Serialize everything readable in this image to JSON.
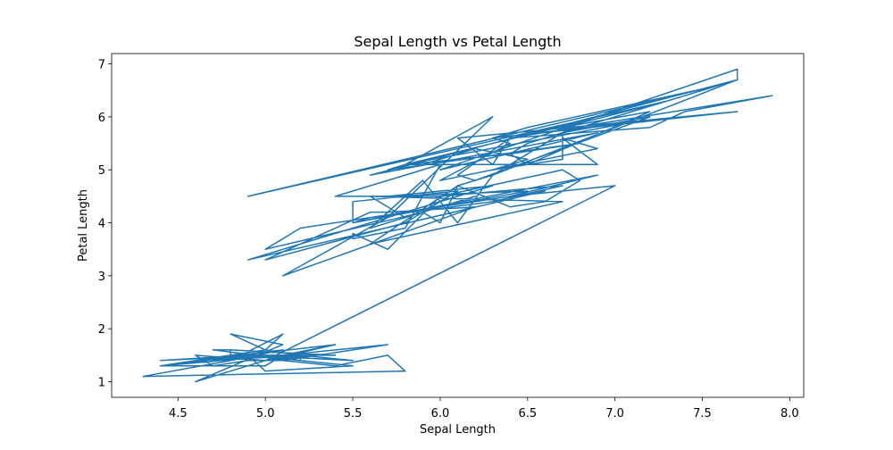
{
  "chart_data": {
    "type": "line",
    "title": "Sepal Length vs Petal Length",
    "xlabel": "Sepal Length",
    "ylabel": "Petal Length",
    "xlim": [
      4.12,
      8.08
    ],
    "ylim": [
      0.705,
      7.195
    ],
    "xticks": [
      4.5,
      5.0,
      5.5,
      6.0,
      6.5,
      7.0,
      7.5,
      8.0
    ],
    "xtick_labels": [
      "4.5",
      "5.0",
      "5.5",
      "6.0",
      "6.5",
      "7.0",
      "7.5",
      "8.0"
    ],
    "yticks": [
      1,
      2,
      3,
      4,
      5,
      6,
      7
    ],
    "ytick_labels": [
      "1",
      "2",
      "3",
      "4",
      "5",
      "6",
      "7"
    ],
    "grid": false,
    "series": [
      {
        "color": "#1f77b4",
        "x": [
          5.1,
          4.9,
          4.7,
          4.6,
          5.0,
          5.4,
          4.6,
          5.0,
          4.4,
          4.9,
          5.4,
          4.8,
          4.8,
          4.3,
          5.8,
          5.7,
          5.4,
          5.1,
          5.7,
          5.1,
          5.4,
          5.1,
          4.6,
          5.1,
          4.8,
          5.0,
          5.0,
          5.2,
          5.2,
          4.7,
          4.8,
          5.4,
          5.2,
          5.5,
          4.9,
          5.0,
          5.5,
          4.9,
          4.4,
          5.1,
          5.0,
          4.5,
          4.4,
          5.0,
          5.1,
          4.8,
          5.1,
          4.6,
          5.3,
          5.0,
          7.0,
          6.4,
          6.9,
          5.5,
          6.5,
          5.7,
          6.3,
          4.9,
          6.6,
          5.2,
          5.0,
          5.9,
          6.0,
          6.1,
          5.6,
          6.7,
          5.6,
          5.8,
          6.2,
          5.6,
          5.9,
          6.1,
          6.3,
          6.1,
          6.4,
          6.6,
          6.8,
          6.7,
          6.0,
          5.7,
          5.5,
          5.5,
          5.8,
          6.0,
          5.4,
          6.0,
          6.7,
          6.3,
          5.6,
          5.5,
          5.5,
          6.1,
          5.8,
          5.0,
          5.6,
          5.7,
          5.7,
          6.2,
          5.1,
          5.7,
          6.3,
          5.8,
          7.1,
          6.3,
          6.5,
          7.6,
          4.9,
          7.3,
          6.7,
          7.2,
          6.5,
          6.4,
          6.8,
          5.7,
          5.8,
          6.4,
          6.5,
          7.7,
          7.7,
          6.0,
          6.9,
          5.6,
          7.7,
          6.3,
          6.7,
          7.2,
          6.2,
          6.1,
          6.4,
          7.2,
          7.4,
          7.9,
          6.4,
          6.3,
          6.1,
          7.7,
          6.3,
          6.4,
          6.0,
          6.9,
          6.7,
          6.9,
          5.8,
          6.8,
          6.7,
          6.7,
          6.3,
          6.5,
          6.2,
          5.9
        ],
        "y": [
          1.4,
          1.4,
          1.3,
          1.5,
          1.4,
          1.7,
          1.4,
          1.5,
          1.4,
          1.5,
          1.5,
          1.6,
          1.4,
          1.1,
          1.2,
          1.5,
          1.3,
          1.4,
          1.7,
          1.5,
          1.7,
          1.5,
          1.0,
          1.7,
          1.9,
          1.6,
          1.6,
          1.5,
          1.4,
          1.6,
          1.6,
          1.5,
          1.5,
          1.4,
          1.5,
          1.2,
          1.3,
          1.5,
          1.3,
          1.5,
          1.3,
          1.3,
          1.3,
          1.6,
          1.9,
          1.4,
          1.6,
          1.4,
          1.5,
          1.4,
          4.7,
          4.5,
          4.9,
          4.0,
          4.6,
          4.5,
          4.7,
          3.3,
          4.6,
          3.9,
          3.5,
          4.2,
          4.0,
          4.7,
          3.6,
          4.4,
          4.5,
          4.1,
          4.5,
          3.9,
          4.8,
          4.0,
          4.9,
          4.7,
          4.3,
          4.4,
          4.8,
          5.0,
          4.5,
          3.5,
          3.8,
          3.7,
          3.9,
          5.1,
          4.5,
          4.5,
          4.7,
          4.4,
          4.1,
          4.0,
          4.4,
          4.6,
          4.0,
          3.3,
          4.2,
          4.2,
          4.2,
          4.3,
          3.0,
          4.1,
          6.0,
          5.1,
          5.9,
          5.6,
          5.8,
          6.6,
          4.5,
          6.3,
          5.8,
          6.1,
          5.1,
          5.3,
          5.5,
          5.0,
          5.1,
          5.3,
          5.5,
          6.7,
          6.9,
          5.0,
          5.7,
          4.9,
          6.7,
          4.9,
          5.7,
          6.0,
          4.8,
          4.9,
          5.6,
          5.8,
          6.1,
          6.4,
          5.6,
          5.1,
          5.6,
          6.1,
          5.6,
          5.5,
          4.8,
          5.4,
          5.6,
          5.1,
          5.1,
          5.9,
          5.7,
          5.2,
          5.0,
          5.2,
          5.4,
          5.1
        ]
      }
    ]
  }
}
